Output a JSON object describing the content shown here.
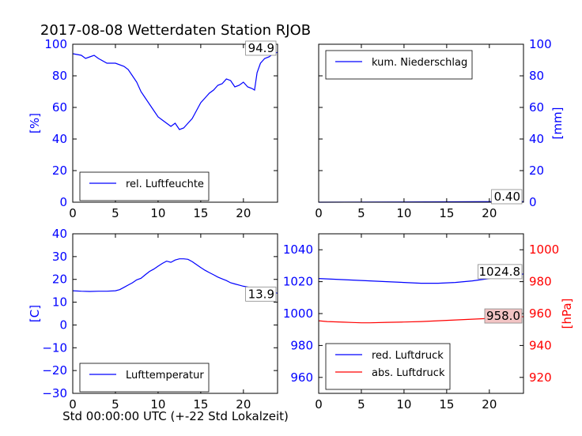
{
  "title": "2017-08-08 Wetterdaten Station RJOB",
  "xlabel": "Std 00:00:00 UTC (+-22 Std Lokalzeit)",
  "colors": {
    "blue": "#0000ff",
    "red": "#ff0000",
    "axis": "#000000"
  },
  "chart_data": [
    {
      "type": "line",
      "panel": "top-left",
      "x_ticks": [
        0,
        5,
        10,
        15,
        20
      ],
      "xlim": [
        0,
        24
      ],
      "ylim": [
        0,
        100
      ],
      "y_ticks": [
        0,
        20,
        40,
        60,
        80,
        100
      ],
      "ylabel": "[%]",
      "ylabel_side": "left",
      "legend_placement": "lower-center",
      "last_value_label": "94.9",
      "series": [
        {
          "name": "rel. Luftfeuchte",
          "color": "#0000ff",
          "x": [
            0,
            1,
            1.5,
            2,
            2.5,
            3,
            4,
            5,
            6,
            6.5,
            7,
            7.5,
            8,
            8.5,
            9,
            9.5,
            10,
            10.5,
            11,
            11.5,
            12,
            12.5,
            13,
            13.5,
            14,
            14.5,
            15,
            15.5,
            16,
            16.5,
            17,
            17.5,
            18,
            18.5,
            19,
            19.5,
            20,
            20.5,
            21,
            21.3,
            21.6,
            22,
            22.5,
            23,
            23.5,
            24
          ],
          "y": [
            94,
            93,
            91,
            92,
            93,
            91,
            88,
            88,
            86,
            84,
            80,
            76,
            70,
            66,
            62,
            58,
            54,
            52,
            50,
            48,
            50,
            46,
            47,
            50,
            53,
            58,
            63,
            66,
            69,
            71,
            74,
            75,
            78,
            77,
            73,
            74,
            76,
            73,
            72,
            71,
            82,
            88,
            91,
            92,
            94,
            94.9
          ]
        }
      ]
    },
    {
      "type": "line",
      "panel": "top-right",
      "x_ticks": [
        0,
        5,
        10,
        15,
        20
      ],
      "xlim": [
        0,
        24
      ],
      "ylim": [
        0,
        100
      ],
      "y_ticks": [
        0,
        20,
        40,
        60,
        80,
        100
      ],
      "ylabel": "[mm]",
      "ylabel_side": "right",
      "legend_placement": "top-left",
      "last_value_label": "0.40",
      "series": [
        {
          "name": "kum. Niederschlag",
          "color": "#0000ff",
          "x": [
            0,
            24
          ],
          "y": [
            0,
            0.4
          ]
        }
      ]
    },
    {
      "type": "line",
      "panel": "bottom-left",
      "x_ticks": [
        0,
        5,
        10,
        15,
        20
      ],
      "xlim": [
        0,
        24
      ],
      "ylim": [
        -30,
        40
      ],
      "y_ticks": [
        -30,
        -20,
        -10,
        0,
        10,
        20,
        30,
        40
      ],
      "ylabel": "[C]",
      "ylabel_side": "left",
      "legend_placement": "lower-center",
      "last_value_label": "13.9",
      "series": [
        {
          "name": "Lufttemperatur",
          "color": "#0000ff",
          "x": [
            0,
            1,
            2,
            3,
            4,
            5,
            5.5,
            6,
            6.5,
            7,
            7.5,
            8,
            8.5,
            9,
            9.5,
            10,
            10.5,
            11,
            11.5,
            12,
            12.5,
            13,
            13.5,
            14,
            14.5,
            15,
            15.5,
            16,
            16.5,
            17,
            17.5,
            18,
            18.5,
            19,
            19.5,
            20,
            21,
            22,
            23,
            24
          ],
          "y": [
            15,
            14.8,
            14.7,
            14.8,
            14.8,
            15,
            15.5,
            16.5,
            17.5,
            18.5,
            19.8,
            20.5,
            22,
            23.5,
            24.5,
            25.8,
            27,
            28,
            27.5,
            28.5,
            29,
            29,
            28.8,
            27.8,
            26.5,
            25.2,
            24,
            23,
            22,
            21,
            20.2,
            19.5,
            18.5,
            18,
            17.5,
            17,
            16.3,
            16,
            15,
            13.9
          ]
        }
      ]
    },
    {
      "type": "line",
      "panel": "bottom-right",
      "x_ticks": [
        0,
        5,
        10,
        15,
        20
      ],
      "xlim": [
        0,
        24
      ],
      "ylim_left": [
        950,
        1050
      ],
      "y_ticks_left": [
        960,
        980,
        1000,
        1020,
        1040
      ],
      "ylim_right": [
        910,
        1010
      ],
      "y_ticks_right": [
        920,
        940,
        960,
        980,
        1000
      ],
      "ylabel_right": "[hPa]",
      "legend_placement": "lower-left",
      "last_value_label_blue": "1024.8",
      "last_value_label_red": "958.0",
      "series": [
        {
          "name": "red. Luftdruck",
          "axis": "left",
          "color": "#0000ff",
          "x": [
            0,
            2,
            4,
            6,
            8,
            10,
            12,
            14,
            16,
            18,
            20,
            21,
            22,
            23,
            24
          ],
          "y": [
            1022,
            1021.5,
            1021,
            1020.5,
            1020,
            1019.5,
            1019,
            1019,
            1019.5,
            1020.5,
            1022,
            1023,
            1023.5,
            1024,
            1024.8
          ]
        },
        {
          "name": "abs. Luftdruck",
          "axis": "right",
          "color": "#ff0000",
          "x": [
            0,
            1,
            2,
            3,
            4,
            5,
            6,
            8,
            10,
            12,
            14,
            16,
            18,
            20,
            22,
            23,
            24
          ],
          "y": [
            955.5,
            955,
            954.8,
            954.6,
            954.4,
            954.2,
            954.2,
            954.5,
            954.7,
            955,
            955.5,
            956,
            956.5,
            957,
            957.8,
            958,
            958
          ]
        }
      ]
    }
  ]
}
